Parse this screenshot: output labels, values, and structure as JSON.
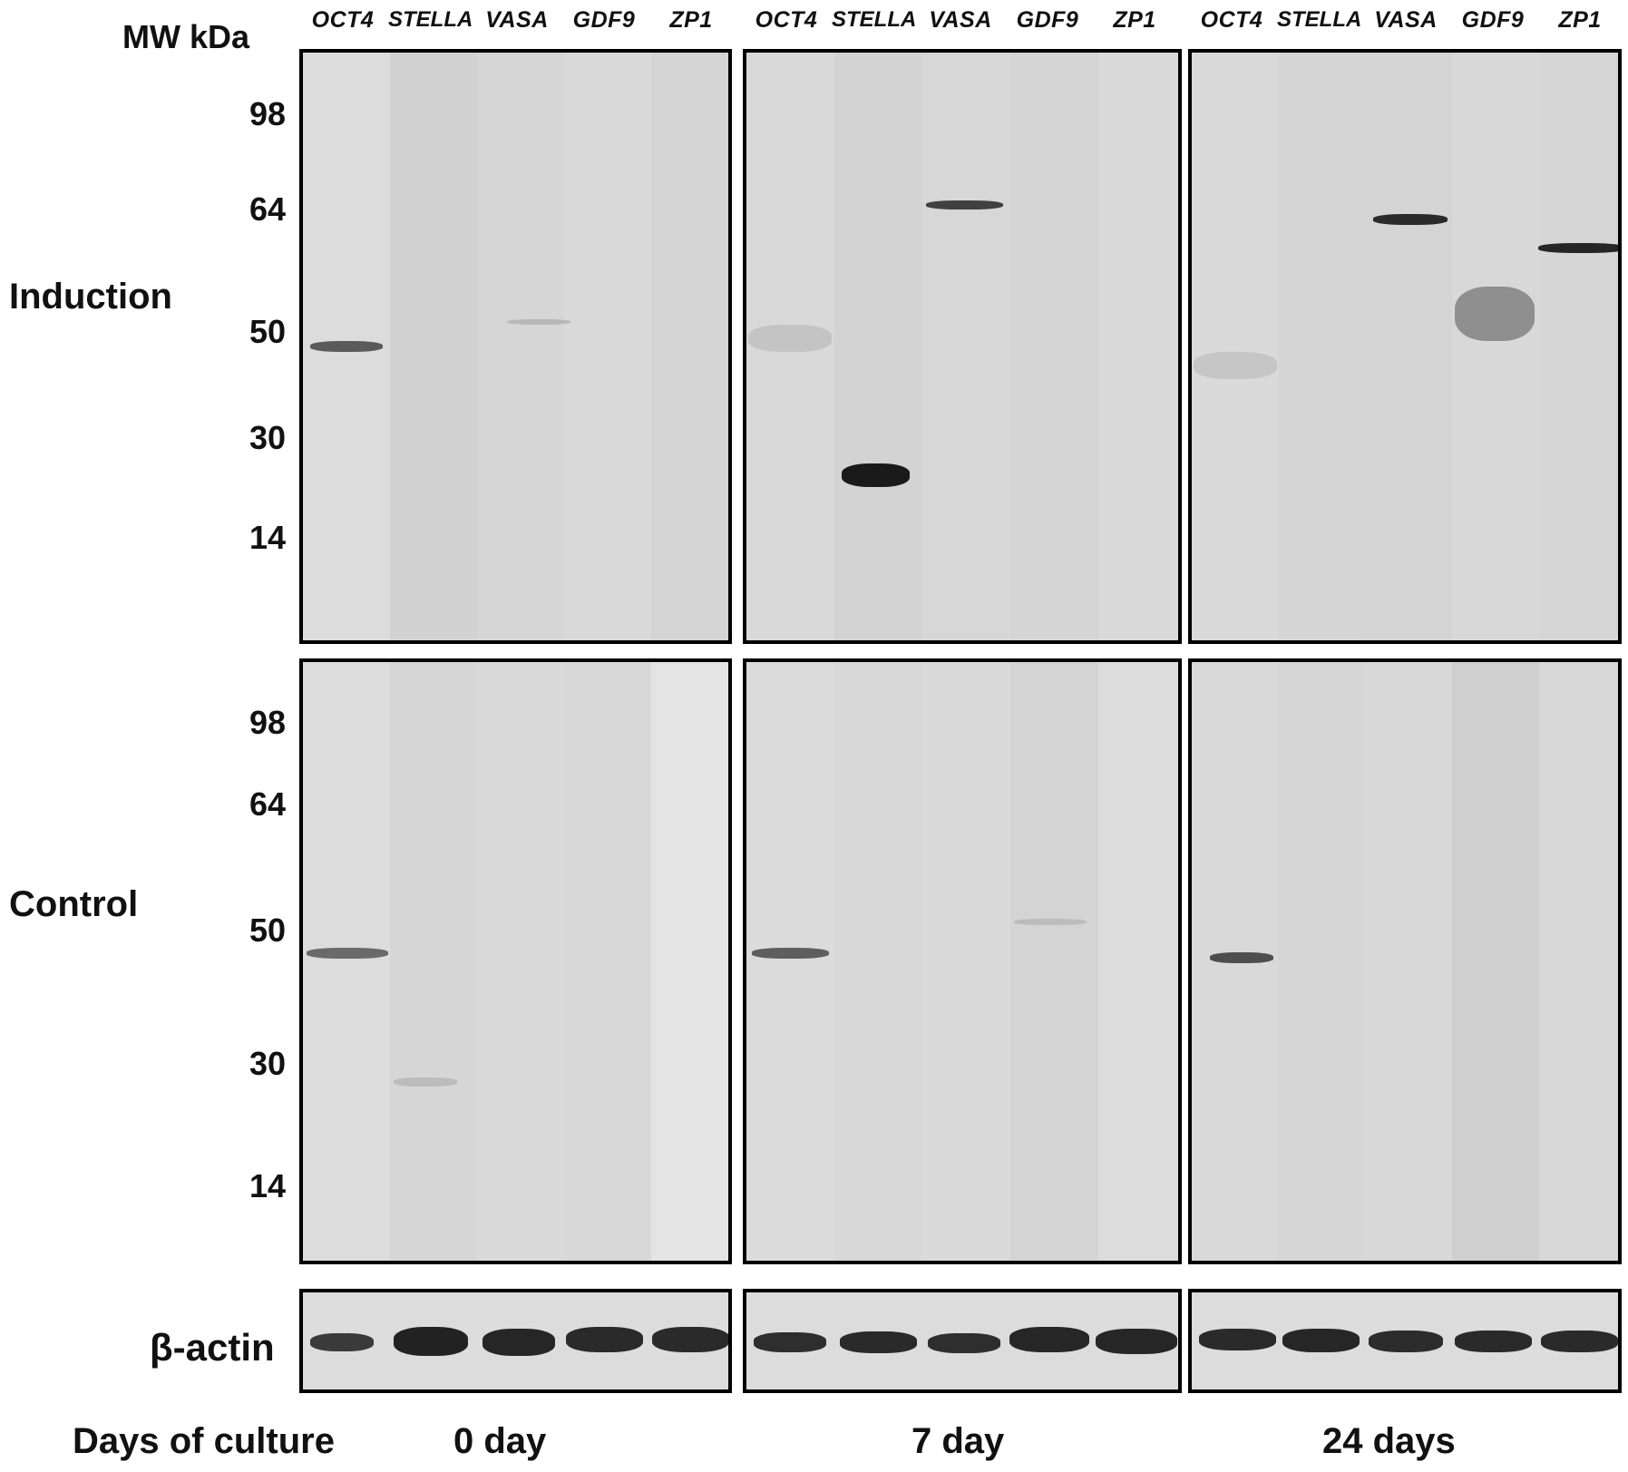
{
  "header": {
    "mw_label": "MW kDa",
    "lane_labels": [
      "OCT4",
      "STELLA",
      "VASA",
      "GDF9",
      "ZP1"
    ]
  },
  "mw_markers": [
    "98",
    "64",
    "50",
    "30",
    "14"
  ],
  "rows": {
    "induction": "Induction",
    "control": "Control",
    "loading": "β-actin"
  },
  "footer": {
    "axis_label": "Days of culture",
    "timepoints": [
      "0 day",
      "7 day",
      "24 days"
    ]
  }
}
